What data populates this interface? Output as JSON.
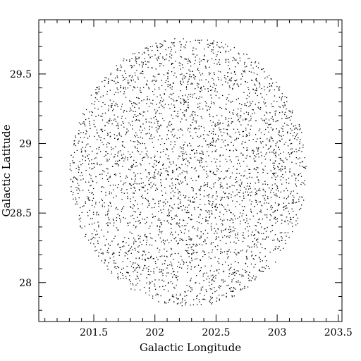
{
  "chart_data": {
    "type": "scatter",
    "title": "",
    "xlabel": "Galactic Longitude",
    "ylabel": "Galactic Latitude",
    "xlim": [
      201.05,
      203.53
    ],
    "ylim": [
      27.72,
      29.89
    ],
    "x_major_ticks": [
      201.5,
      202,
      202.5,
      203,
      203.5
    ],
    "x_tick_labels": [
      "201.5",
      "202",
      "202.5",
      "203",
      "203.5"
    ],
    "x_minor_step": 0.1,
    "y_major_ticks": [
      28,
      28.5,
      29,
      29.5
    ],
    "y_tick_labels": [
      "28",
      "28.5",
      "29",
      "29.5"
    ],
    "y_minor_step": 0.1,
    "grid": false,
    "legend": "none",
    "marker_color": "#000000",
    "field": {
      "shape": "circular field of point sources",
      "center_l": 202.27,
      "center_b": 28.8,
      "radius_deg": 0.97,
      "approx_point_count": 3600
    }
  }
}
